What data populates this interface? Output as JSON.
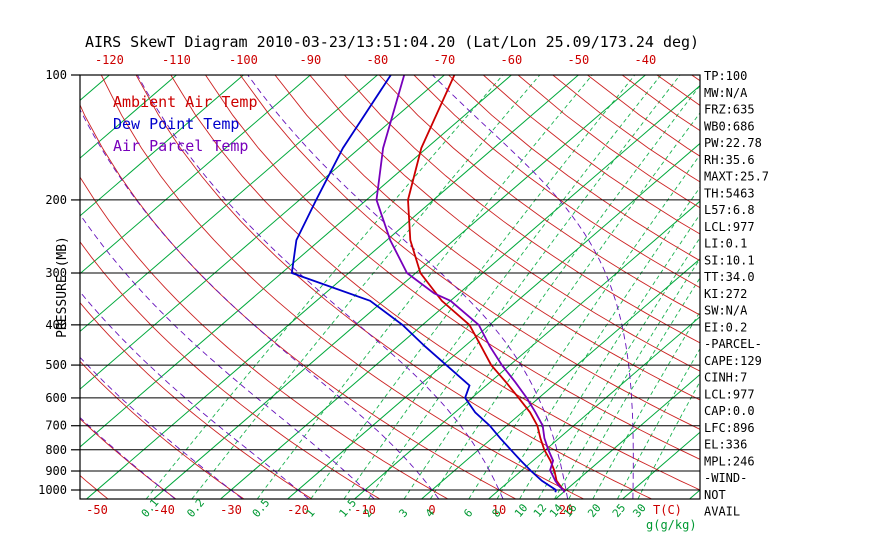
{
  "title": "AIRS SkewT Diagram 2010-03-23/13:51:04.20 (Lat/Lon 25.09/173.24 deg)",
  "legend": [
    {
      "label": "Ambient Air Temp",
      "color": "#cc0000"
    },
    {
      "label": "Dew Point Temp",
      "color": "#0000cc"
    },
    {
      "label": "Air Parcel Temp",
      "color": "#7700bb"
    }
  ],
  "axes": {
    "pressure_label": "PRESSURE (MB)",
    "pressure_ticks": [
      100,
      200,
      300,
      400,
      500,
      600,
      700,
      800,
      900,
      1000
    ],
    "top_temp_ticks": [
      -120,
      -110,
      -100,
      -90,
      -80,
      -70,
      -60,
      -50,
      -40
    ],
    "bottom_temp_ticks": [
      -50,
      -40,
      -30,
      -20,
      -10,
      0,
      10,
      20
    ],
    "temp_unit_label": "T(C)",
    "mixing_ratio_ticks": [
      0.1,
      0.2,
      0.5,
      1,
      1.5,
      2,
      3,
      4,
      6,
      8,
      10,
      12,
      14,
      16,
      20,
      25,
      30
    ],
    "mixing_ratio_unit_label": "g(g/kg)"
  },
  "stats": [
    "TP:100",
    "MW:N/A",
    "FRZ:635",
    "WB0:686",
    "PW:22.78",
    "RH:35.6",
    "MAXT:25.7",
    "TH:5463",
    "L57:6.8",
    "LCL:977",
    "LI:0.1",
    "SI:10.1",
    "TT:34.0",
    "KI:272",
    "SW:N/A",
    "EI:0.2",
    "-PARCEL-",
    "CAPE:129",
    "CINH:7",
    "LCL:977",
    "CAP:0.0",
    "LFC:896",
    "EL:336",
    "MPL:246",
    "-WIND-",
    "NOT",
    "AVAIL"
  ],
  "colors": {
    "isotherm": "#00a83c",
    "mixing_ratio": "#00a83c",
    "dry_adiabat": "#cc2222",
    "moist_adiabat": "#6611bb",
    "pressure_line": "#000000",
    "axis_temp_label": "#cc0000",
    "axis_mixing_label": "#009933",
    "ambient": "#cc0000",
    "dew_point": "#0000cc",
    "parcel": "#7700bb"
  },
  "chart_data": {
    "type": "line",
    "subtype": "skew-t-log-p",
    "title": "AIRS SkewT Diagram 2010-03-23/13:51:04.20 (Lat/Lon 25.09/173.24 deg)",
    "ylabel": "PRESSURE (MB)",
    "xlabel": "T(C)",
    "pressure_range_mb": [
      100,
      1050
    ],
    "surface_temp_axis_range_c": [
      -52,
      40
    ],
    "top_temp_axis_range_c": [
      -120,
      -40
    ],
    "grid": {
      "pressure_levels_mb": [
        100,
        200,
        300,
        400,
        500,
        600,
        700,
        800,
        900,
        1000
      ],
      "isotherms_c": {
        "min": -160,
        "max": 40,
        "step": 10
      },
      "dry_adiabats_c": {
        "min": -60,
        "max": 190,
        "step": 10
      },
      "moist_adiabats_c": {
        "min": -40,
        "max": 30,
        "step": 10
      },
      "mixing_ratio_lines_gkg": [
        0.1,
        0.2,
        0.5,
        1,
        1.5,
        2,
        3,
        4,
        6,
        8,
        10,
        12,
        14,
        16,
        20,
        25,
        30
      ]
    },
    "series": [
      {
        "name": "Ambient Air Temp",
        "units": [
          "pressure_mb",
          "temp_c"
        ],
        "points": [
          [
            1013,
            20.2
          ],
          [
            1000,
            19.6
          ],
          [
            950,
            17.0
          ],
          [
            900,
            15.0
          ],
          [
            850,
            12.6
          ],
          [
            800,
            9.8
          ],
          [
            750,
            7.2
          ],
          [
            700,
            4.6
          ],
          [
            650,
            1.2
          ],
          [
            600,
            -3.0
          ],
          [
            550,
            -7.6
          ],
          [
            500,
            -12.8
          ],
          [
            450,
            -17.6
          ],
          [
            400,
            -23.0
          ],
          [
            350,
            -31.3
          ],
          [
            300,
            -39.3
          ],
          [
            250,
            -46.5
          ],
          [
            200,
            -53.8
          ],
          [
            150,
            -60.8
          ],
          [
            100,
            -68.5
          ]
        ]
      },
      {
        "name": "Dew Point Temp",
        "units": [
          "pressure_mb",
          "temp_c"
        ],
        "points": [
          [
            1013,
            18.8
          ],
          [
            1000,
            18.5
          ],
          [
            950,
            14.8
          ],
          [
            900,
            11.5
          ],
          [
            850,
            8.2
          ],
          [
            800,
            4.8
          ],
          [
            750,
            1.2
          ],
          [
            700,
            -2.5
          ],
          [
            650,
            -7.0
          ],
          [
            600,
            -11.0
          ],
          [
            560,
            -12.5
          ],
          [
            500,
            -19.5
          ],
          [
            450,
            -26.0
          ],
          [
            400,
            -33.0
          ],
          [
            350,
            -42.0
          ],
          [
            300,
            -58.5
          ],
          [
            250,
            -63.5
          ],
          [
            200,
            -67.5
          ],
          [
            150,
            -72.5
          ],
          [
            100,
            -78.0
          ]
        ]
      },
      {
        "name": "Air Parcel Temp",
        "units": [
          "pressure_mb",
          "temp_c"
        ],
        "points": [
          [
            1013,
            20.2
          ],
          [
            1000,
            19.6
          ],
          [
            977,
            18.2
          ],
          [
            950,
            16.8
          ],
          [
            900,
            14.4
          ],
          [
            896,
            14.2
          ],
          [
            850,
            13.0
          ],
          [
            800,
            10.4
          ],
          [
            750,
            7.8
          ],
          [
            700,
            5.4
          ],
          [
            650,
            2.0
          ],
          [
            600,
            -1.8
          ],
          [
            550,
            -6.2
          ],
          [
            500,
            -11.2
          ],
          [
            450,
            -16.3
          ],
          [
            400,
            -21.6
          ],
          [
            350,
            -30.0
          ],
          [
            336,
            -33.7
          ],
          [
            300,
            -41.3
          ],
          [
            250,
            -49.5
          ],
          [
            200,
            -58.5
          ],
          [
            150,
            -66.5
          ],
          [
            100,
            -76.0
          ]
        ]
      }
    ],
    "annotations": {
      "sounding_stats": [
        "TP:100",
        "MW:N/A",
        "FRZ:635",
        "WB0:686",
        "PW:22.78",
        "RH:35.6",
        "MAXT:25.7",
        "TH:5463",
        "L57:6.8",
        "LCL:977",
        "LI:0.1",
        "SI:10.1",
        "TT:34.0",
        "KI:272",
        "SW:N/A",
        "EI:0.2",
        "-PARCEL-",
        "CAPE:129",
        "CINH:7",
        "LCL:977",
        "CAP:0.0",
        "LFC:896",
        "EL:336",
        "MPL:246",
        "-WIND-",
        "NOT",
        "AVAIL"
      ]
    }
  }
}
